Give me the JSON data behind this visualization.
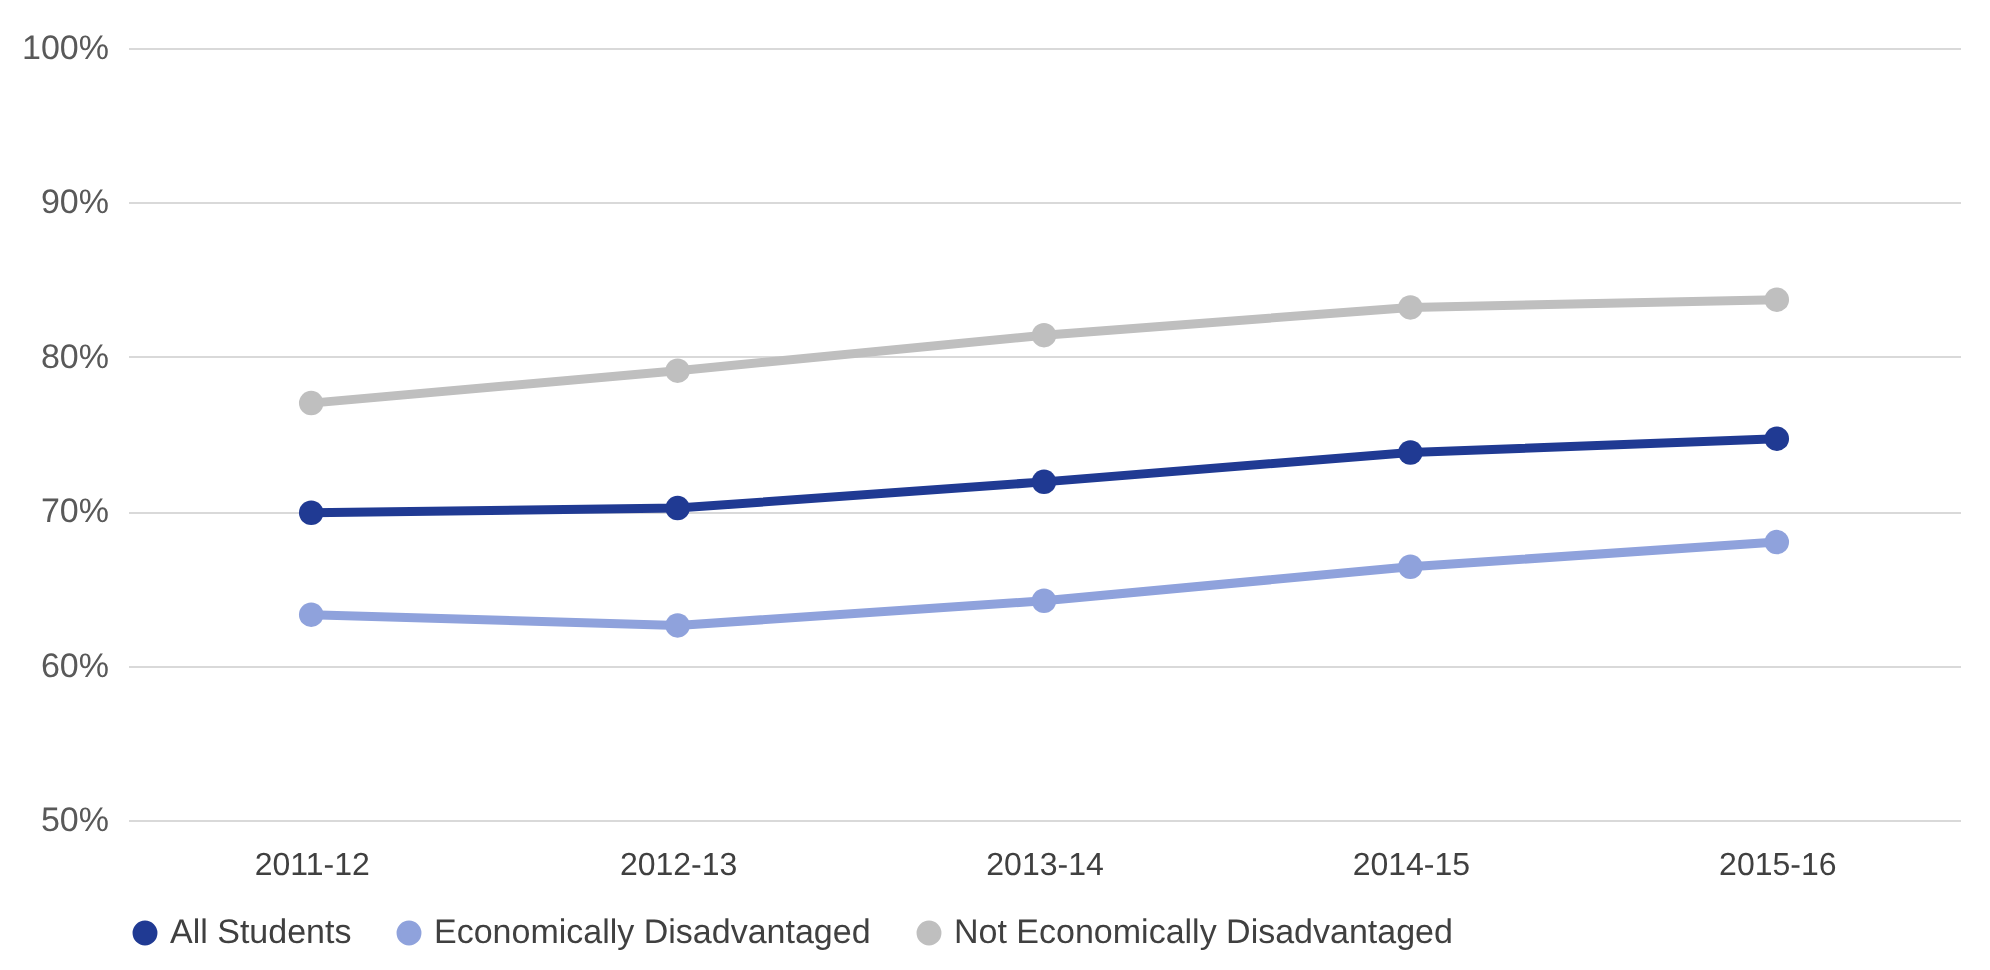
{
  "chart_data": {
    "type": "line",
    "categories": [
      "2011-12",
      "2012-13",
      "2013-14",
      "2014-15",
      "2015-16"
    ],
    "series": [
      {
        "name": "All Students",
        "color": "#203a93",
        "values": [
          69.9,
          70.2,
          71.9,
          73.8,
          74.7
        ]
      },
      {
        "name": "Economically Disadvantaged",
        "color": "#8fa2dc",
        "values": [
          63.3,
          62.6,
          64.2,
          66.4,
          68.0
        ]
      },
      {
        "name": "Not Economically Disadvantaged",
        "color": "#bfbfbf",
        "values": [
          77.0,
          79.1,
          81.4,
          83.2,
          83.7
        ]
      }
    ],
    "ylim": [
      50,
      100
    ],
    "yticks": [
      {
        "value": 50,
        "label": "50%"
      },
      {
        "value": 60,
        "label": "60%"
      },
      {
        "value": 70,
        "label": "70%"
      },
      {
        "value": 80,
        "label": "80%"
      },
      {
        "value": 90,
        "label": "90%"
      },
      {
        "value": 100,
        "label": "100%"
      }
    ],
    "grid": "y",
    "legend": "bottom",
    "marker": "circle",
    "line_style": "solid"
  }
}
